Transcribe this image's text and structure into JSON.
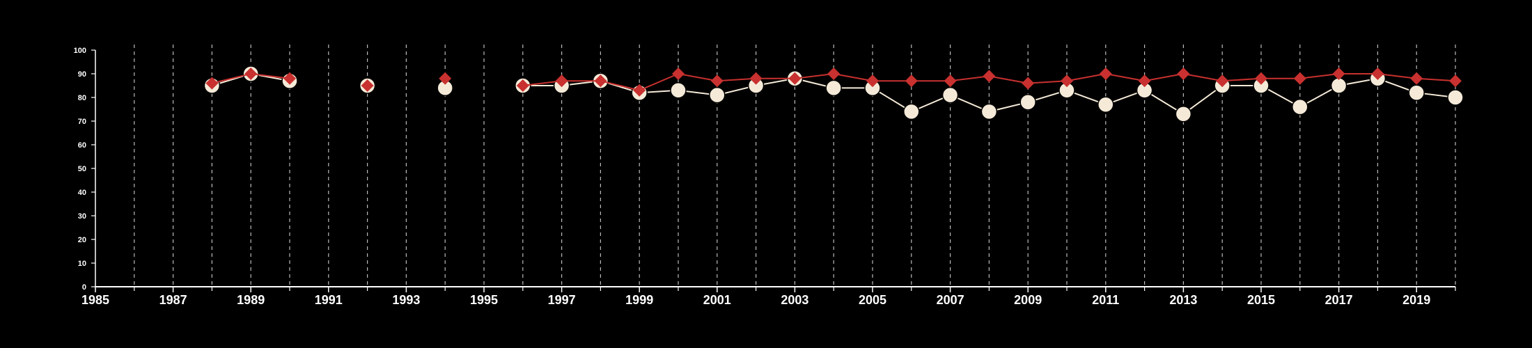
{
  "chart_data": {
    "type": "line",
    "title": "",
    "xlabel": "",
    "ylabel": "",
    "xlim": [
      1985,
      2020
    ],
    "ylim": [
      0,
      100
    ],
    "x_ticks": [
      "1985",
      "1987",
      "1989",
      "1991",
      "1993",
      "1995",
      "1997",
      "1999",
      "2001",
      "2003",
      "2005",
      "2007",
      "2009",
      "2011",
      "2013",
      "2015",
      "2017",
      "2019"
    ],
    "y_ticks": [
      "0",
      "10",
      "20",
      "30",
      "40",
      "50",
      "60",
      "70",
      "80",
      "90",
      "100"
    ],
    "grid": "vertical dashed lines at every year",
    "legend": "none",
    "colors": {
      "background": "#000000",
      "axis": "#ffffff",
      "grid": "#bbbbbb",
      "series_circle": "#f5ead8",
      "series_diamond": "#c8312f"
    },
    "series": [
      {
        "marker": "circle",
        "color": "#f5ead8",
        "x": [
          1988,
          1989,
          1990,
          1992,
          1994,
          1996,
          1997,
          1998,
          1999,
          2000,
          2001,
          2002,
          2003,
          2004,
          2005,
          2006,
          2007,
          2008,
          2009,
          2010,
          2011,
          2012,
          2013,
          2014,
          2015,
          2016,
          2017,
          2018,
          2019,
          2020
        ],
        "values": [
          85,
          90,
          87,
          85,
          84,
          85,
          85,
          87,
          82,
          83,
          81,
          85,
          88,
          84,
          84,
          74,
          81,
          74,
          78,
          83,
          77,
          83,
          73,
          85,
          85,
          76,
          85,
          88,
          82,
          80
        ]
      },
      {
        "marker": "diamond",
        "color": "#c8312f",
        "x": [
          1988,
          1989,
          1990,
          1992,
          1994,
          1996,
          1997,
          1998,
          1999,
          2000,
          2001,
          2002,
          2003,
          2004,
          2005,
          2006,
          2007,
          2008,
          2009,
          2010,
          2011,
          2012,
          2013,
          2014,
          2015,
          2016,
          2017,
          2018,
          2019,
          2020
        ],
        "values": [
          86,
          90,
          88,
          85,
          88,
          85,
          87,
          87,
          83,
          90,
          87,
          88,
          88,
          90,
          87,
          87,
          87,
          89,
          86,
          87,
          90,
          87,
          90,
          87,
          88,
          88,
          90,
          90,
          88,
          87
        ]
      }
    ]
  }
}
